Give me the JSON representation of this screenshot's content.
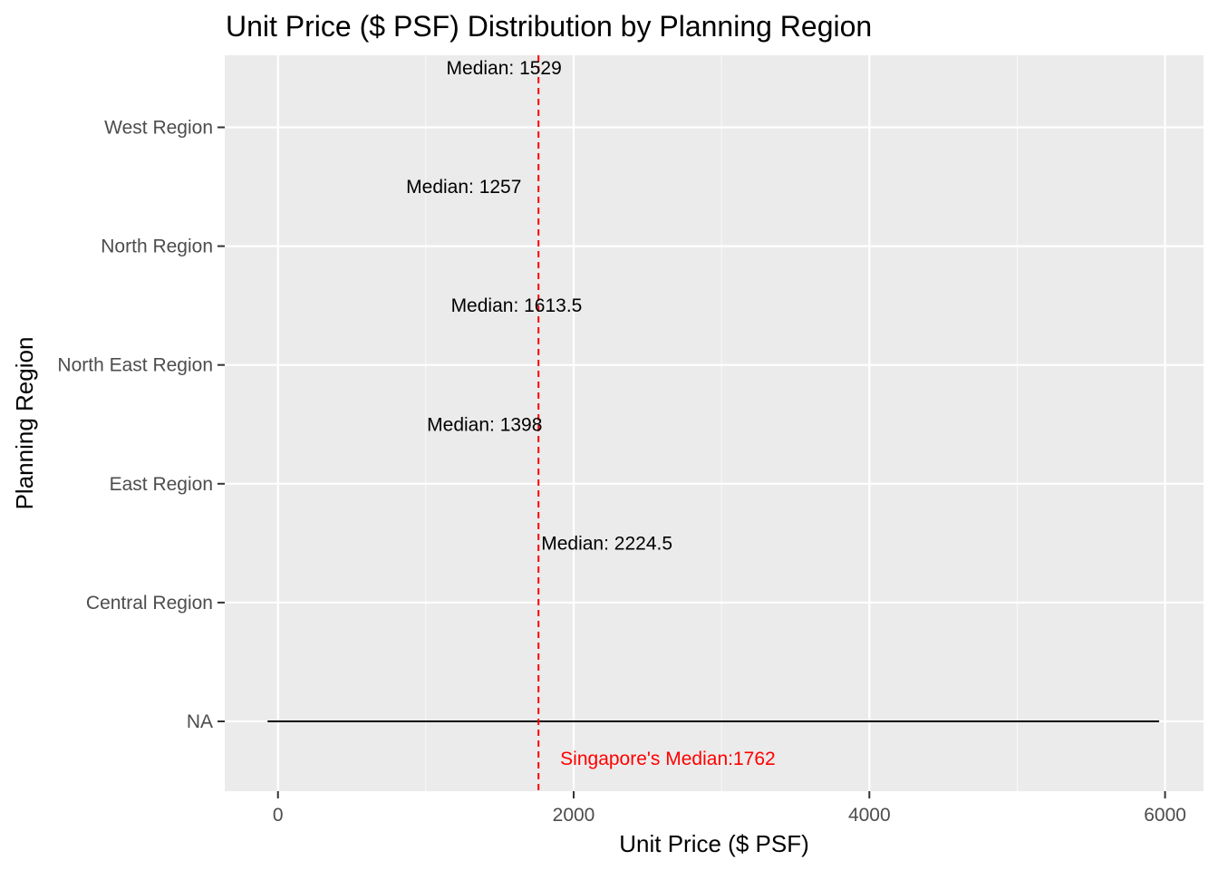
{
  "chart_data": {
    "type": "line",
    "title": "Unit Price ($ PSF) Distribution by Planning Region",
    "xlabel": "Unit Price ($ PSF)",
    "ylabel": "Planning Region",
    "xlim": [
      -360,
      6260
    ],
    "xticks": [
      0,
      2000,
      4000,
      6000
    ],
    "x_minor_ticks": [
      1000,
      3000,
      5000
    ],
    "categories": [
      "NA",
      "Central Region",
      "East Region",
      "North East Region",
      "North Region",
      "West Region"
    ],
    "grid": true,
    "legend": "none",
    "panel_color": "#ebebeb",
    "segments": [
      {
        "category": "NA",
        "x_start": -70,
        "x_end": 5960
      }
    ],
    "median_labels": [
      {
        "category": "West Region",
        "text": "Median: 1529",
        "value": 1529
      },
      {
        "category": "North Region",
        "text": "Median: 1257",
        "value": 1257
      },
      {
        "category": "North East Region",
        "text": "Median: 1613.5",
        "value": 1613.5
      },
      {
        "category": "East Region",
        "text": "Median: 1398",
        "value": 1398
      },
      {
        "category": "Central Region",
        "text": "Median: 2224.5",
        "value": 2224.5
      }
    ],
    "reference_line": {
      "value": 1762,
      "style": "dashed",
      "color": "#ff0000",
      "label": "Singapore's Median:1762"
    }
  }
}
